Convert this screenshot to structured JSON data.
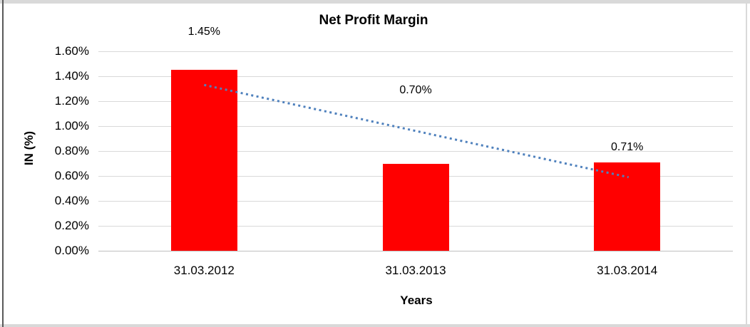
{
  "chart_data": {
    "type": "bar",
    "title": "Net Profit Margin",
    "xlabel": "Years",
    "ylabel": "IN (%)",
    "categories": [
      "31.03.2012",
      "31.03.2013",
      "31.03.2014"
    ],
    "values": [
      1.45,
      0.7,
      0.71
    ],
    "data_labels": [
      "1.45%",
      "0.70%",
      "0.71%"
    ],
    "ylim": [
      0,
      1.6
    ],
    "ytick_step": 0.2,
    "ytick_labels": [
      "1.60%",
      "1.40%",
      "1.20%",
      "1.00%",
      "0.80%",
      "0.60%",
      "0.40%",
      "0.20%",
      "0.00%"
    ],
    "grid": true,
    "legend": "none",
    "bar_color": "#FF0000",
    "trendline": {
      "type": "linear",
      "style": "dotted",
      "color": "#4F81BD",
      "start_value": 1.33,
      "end_value": 0.59
    }
  },
  "colors": {
    "background": "#FFFFFF",
    "bar": "#FF0000",
    "trendline": "#4F81BD",
    "gridline": "#D9D9D9",
    "axis_line": "#BFBFBF",
    "border": "#D9D9D9",
    "border_left": "#595959",
    "text": "#000000"
  }
}
